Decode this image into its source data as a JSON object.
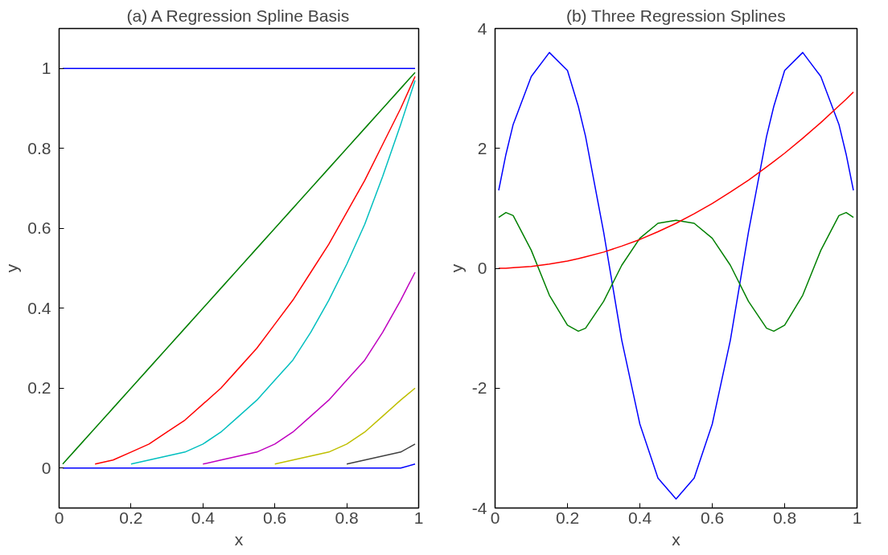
{
  "chart_data": [
    {
      "type": "line",
      "title": "(a) A Regression Spline Basis",
      "xlabel": "x",
      "ylabel": "y",
      "xlim": [
        0,
        1
      ],
      "ylim": [
        -0.1,
        1.1
      ],
      "xticks": [
        0,
        0.2,
        0.4,
        0.6,
        0.8,
        1
      ],
      "yticks": [
        0,
        0.2,
        0.4,
        0.6,
        0.8,
        1
      ],
      "grid": false,
      "marker": "none",
      "line_style": "solid",
      "x": [
        0.01,
        0.05,
        0.1,
        0.15,
        0.2,
        0.25,
        0.3,
        0.35,
        0.4,
        0.45,
        0.5,
        0.55,
        0.6,
        0.65,
        0.7,
        0.75,
        0.8,
        0.85,
        0.9,
        0.95,
        0.99
      ],
      "series": [
        {
          "color": "#0000ff",
          "values": [
            1,
            1,
            1,
            1,
            1,
            1,
            1,
            1,
            1,
            1,
            1,
            1,
            1,
            1,
            1,
            1,
            1,
            1,
            1,
            1,
            1
          ]
        },
        {
          "color": "#008000",
          "values": [
            0.01,
            0.05,
            0.1,
            0.15,
            0.2,
            0.25,
            0.3,
            0.35,
            0.4,
            0.45,
            0.5,
            0.55,
            0.6,
            0.65,
            0.7,
            0.75,
            0.8,
            0.85,
            0.9,
            0.95,
            0.99
          ]
        },
        {
          "color": "#ff0000",
          "x": [
            0.1,
            0.15,
            0.2,
            0.25,
            0.3,
            0.35,
            0.4,
            0.45,
            0.5,
            0.55,
            0.6,
            0.65,
            0.7,
            0.75,
            0.8,
            0.85,
            0.9,
            0.95,
            0.99
          ],
          "values": [
            0.01,
            0.02,
            0.04,
            0.06,
            0.09,
            0.12,
            0.16,
            0.2,
            0.25,
            0.3,
            0.36,
            0.42,
            0.49,
            0.56,
            0.64,
            0.72,
            0.81,
            0.9,
            0.98
          ]
        },
        {
          "color": "#00bfbf",
          "x": [
            0.2,
            0.25,
            0.3,
            0.35,
            0.4,
            0.45,
            0.5,
            0.55,
            0.6,
            0.65,
            0.7,
            0.75,
            0.8,
            0.85,
            0.9,
            0.95,
            0.99
          ],
          "values": [
            0.01,
            0.02,
            0.03,
            0.04,
            0.06,
            0.09,
            0.13,
            0.17,
            0.22,
            0.27,
            0.34,
            0.42,
            0.51,
            0.61,
            0.73,
            0.86,
            0.97
          ]
        },
        {
          "color": "#bf00bf",
          "x": [
            0.4,
            0.45,
            0.5,
            0.55,
            0.6,
            0.65,
            0.7,
            0.75,
            0.8,
            0.85,
            0.9,
            0.95,
            0.99
          ],
          "values": [
            0.01,
            0.02,
            0.03,
            0.04,
            0.06,
            0.09,
            0.13,
            0.17,
            0.22,
            0.27,
            0.34,
            0.42,
            0.49
          ]
        },
        {
          "color": "#bfbf00",
          "x": [
            0.6,
            0.65,
            0.7,
            0.75,
            0.8,
            0.85,
            0.9,
            0.95,
            0.99
          ],
          "values": [
            0.01,
            0.02,
            0.03,
            0.04,
            0.06,
            0.09,
            0.13,
            0.17,
            0.2
          ]
        },
        {
          "color": "#404040",
          "x": [
            0.8,
            0.85,
            0.9,
            0.95,
            0.99
          ],
          "values": [
            0.01,
            0.02,
            0.03,
            0.04,
            0.06
          ]
        },
        {
          "color": "#0000ff",
          "values": [
            0,
            0,
            0,
            0,
            0,
            0,
            0,
            0,
            0,
            0,
            0,
            0,
            0,
            0,
            0,
            0,
            0,
            0,
            0,
            0,
            0.01
          ]
        }
      ]
    },
    {
      "type": "line",
      "title": "(b) Three Regression Splines",
      "xlabel": "x",
      "ylabel": "y",
      "xlim": [
        0,
        1
      ],
      "ylim": [
        -4,
        4
      ],
      "xticks": [
        0,
        0.2,
        0.4,
        0.6,
        0.8,
        1
      ],
      "yticks": [
        -4,
        -2,
        0,
        2,
        4
      ],
      "grid": false,
      "marker": "none",
      "line_style": "solid",
      "x": [
        0.01,
        0.03,
        0.05,
        0.1,
        0.15,
        0.2,
        0.23,
        0.25,
        0.3,
        0.35,
        0.4,
        0.45,
        0.5,
        0.55,
        0.6,
        0.65,
        0.7,
        0.75,
        0.77,
        0.8,
        0.85,
        0.9,
        0.95,
        0.97,
        0.99
      ],
      "series": [
        {
          "color": "#0000ff",
          "values": [
            1.3,
            1.9,
            2.4,
            3.2,
            3.6,
            3.3,
            2.7,
            2.2,
            0.6,
            -1.2,
            -2.6,
            -3.5,
            -3.85,
            -3.5,
            -2.6,
            -1.2,
            0.6,
            2.2,
            2.7,
            3.3,
            3.6,
            3.2,
            2.4,
            1.9,
            1.3
          ]
        },
        {
          "color": "#008000",
          "values": [
            0.85,
            0.93,
            0.88,
            0.3,
            -0.45,
            -0.95,
            -1.05,
            -1.0,
            -0.55,
            0.05,
            0.5,
            0.75,
            0.8,
            0.75,
            0.5,
            0.05,
            -0.55,
            -1.0,
            -1.05,
            -0.95,
            -0.45,
            0.3,
            0.88,
            0.93,
            0.85
          ]
        },
        {
          "color": "#ff0000",
          "values": [
            0,
            0,
            0.01,
            0.03,
            0.07,
            0.12,
            0.16,
            0.19,
            0.27,
            0.37,
            0.48,
            0.61,
            0.75,
            0.91,
            1.08,
            1.27,
            1.47,
            1.69,
            1.78,
            1.92,
            2.17,
            2.43,
            2.71,
            2.82,
            2.94
          ]
        }
      ]
    }
  ]
}
